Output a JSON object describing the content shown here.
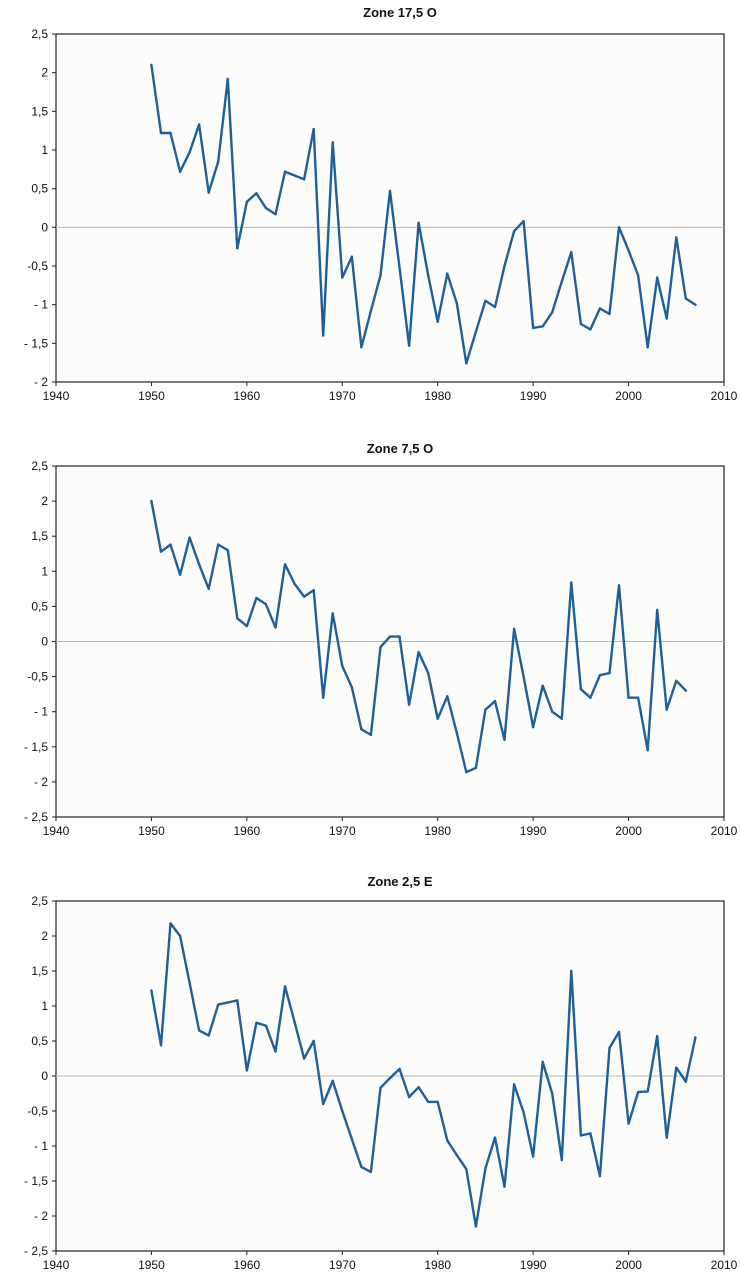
{
  "chart_data": [
    {
      "type": "line",
      "title": "Zone 17,5 O",
      "xlim": [
        1940,
        2010
      ],
      "ylim": [
        -2,
        2.5
      ],
      "x_ticks": [
        1940,
        1950,
        1960,
        1970,
        1980,
        1990,
        2000,
        2010
      ],
      "x_tick_labels": [
        "1940",
        "1950",
        "1960",
        "1970",
        "1980",
        "1990",
        "2000",
        "2010"
      ],
      "y_ticks": [
        2.5,
        2,
        1.5,
        1,
        0.5,
        0,
        -0.5,
        -1,
        -1.5,
        -2
      ],
      "y_tick_labels": [
        "2,5",
        "2",
        "1,5",
        "1",
        "0,5",
        "0",
        "-0,5",
        "- 1",
        "- 1,5",
        "- 2"
      ],
      "grid": false,
      "zero_line": true,
      "color": "#1f5f9a",
      "x": [
        1950,
        1951,
        1952,
        1953,
        1954,
        1955,
        1956,
        1957,
        1958,
        1959,
        1960,
        1961,
        1962,
        1963,
        1964,
        1965,
        1966,
        1967,
        1968,
        1969,
        1970,
        1971,
        1972,
        1973,
        1974,
        1975,
        1976,
        1977,
        1978,
        1979,
        1980,
        1981,
        1982,
        1983,
        1984,
        1985,
        1986,
        1987,
        1988,
        1989,
        1990,
        1991,
        1992,
        1993,
        1994,
        1995,
        1996,
        1997,
        1998,
        1999,
        2000,
        2001,
        2002,
        2003,
        2004,
        2005,
        2006,
        2007
      ],
      "values": [
        2.1,
        1.22,
        1.22,
        0.72,
        0.97,
        1.33,
        0.45,
        0.85,
        1.92,
        -0.27,
        0.33,
        0.44,
        0.25,
        0.17,
        0.72,
        0.67,
        0.62,
        1.27,
        -1.4,
        1.1,
        -0.65,
        -0.38,
        -1.55,
        -1.08,
        -0.62,
        0.47,
        -0.52,
        -1.53,
        0.06,
        -0.62,
        -1.22,
        -0.6,
        -0.98,
        -1.76,
        -1.35,
        -0.95,
        -1.03,
        -0.5,
        -0.05,
        0.08,
        -1.3,
        -1.28,
        -1.1,
        -0.7,
        -0.32,
        -1.25,
        -1.32,
        -1.05,
        -1.12,
        0.0,
        -0.3,
        -0.62,
        -1.55,
        -0.65,
        -1.18,
        -0.13,
        -0.92,
        -1.0
      ]
    },
    {
      "type": "line",
      "title": "Zone 7,5 O",
      "xlim": [
        1940,
        2010
      ],
      "ylim": [
        -2.5,
        2.5
      ],
      "x_ticks": [
        1940,
        1950,
        1960,
        1970,
        1980,
        1990,
        2000,
        2010
      ],
      "x_tick_labels": [
        "1940",
        "1950",
        "1960",
        "1970",
        "1980",
        "1990",
        "2000",
        "2010"
      ],
      "y_ticks": [
        2.5,
        2,
        1.5,
        1,
        0.5,
        0,
        -0.5,
        -1,
        -1.5,
        -2,
        -2.5
      ],
      "y_tick_labels": [
        "2,5",
        "2",
        "1,5",
        "1",
        "0,5",
        "0",
        "-0,5",
        "- 1",
        "- 1,5",
        "- 2",
        "- 2,5"
      ],
      "grid": false,
      "zero_line": true,
      "color": "#1f5f9a",
      "x": [
        1950,
        1951,
        1952,
        1953,
        1954,
        1955,
        1956,
        1957,
        1958,
        1959,
        1960,
        1961,
        1962,
        1963,
        1964,
        1965,
        1966,
        1967,
        1968,
        1969,
        1970,
        1971,
        1972,
        1973,
        1974,
        1975,
        1976,
        1977,
        1978,
        1979,
        1980,
        1981,
        1982,
        1983,
        1984,
        1985,
        1986,
        1987,
        1988,
        1989,
        1990,
        1991,
        1992,
        1993,
        1994,
        1995,
        1996,
        1997,
        1998,
        1999,
        2000,
        2001,
        2002,
        2003,
        2004,
        2005,
        2006
      ],
      "values": [
        2.0,
        1.28,
        1.38,
        0.95,
        1.48,
        1.1,
        0.75,
        1.38,
        1.3,
        0.33,
        0.22,
        0.62,
        0.53,
        0.2,
        1.1,
        0.82,
        0.64,
        0.73,
        -0.8,
        0.4,
        -0.35,
        -0.65,
        -1.25,
        -1.33,
        -0.08,
        0.07,
        0.07,
        -0.9,
        -0.15,
        -0.45,
        -1.1,
        -0.78,
        -1.3,
        -1.86,
        -1.8,
        -0.97,
        -0.85,
        -1.4,
        0.18,
        -0.5,
        -1.22,
        -0.63,
        -1.0,
        -1.1,
        0.84,
        -0.68,
        -0.8,
        -0.48,
        -0.45,
        0.8,
        -0.8,
        -0.8,
        -1.55,
        0.45,
        -0.97,
        -0.56,
        -0.7
      ]
    },
    {
      "type": "line",
      "title": "Zone 2,5 E",
      "xlim": [
        1940,
        2010
      ],
      "ylim": [
        -2.5,
        2.5
      ],
      "x_ticks": [
        1940,
        1950,
        1960,
        1970,
        1980,
        1990,
        2000,
        2010
      ],
      "x_tick_labels": [
        "1940",
        "1950",
        "1960",
        "1970",
        "1980",
        "1990",
        "2000",
        "2010"
      ],
      "y_ticks": [
        2.5,
        2,
        1.5,
        1,
        0.5,
        0,
        -0.5,
        -1,
        -1.5,
        -2,
        -2.5
      ],
      "y_tick_labels": [
        "2,5",
        "2",
        "1,5",
        "1",
        "0,5",
        "0",
        "-0,5",
        "- 1",
        "- 1,5",
        "- 2",
        "- 2,5"
      ],
      "grid": false,
      "zero_line": true,
      "color": "#1f5f9a",
      "x": [
        1950,
        1951,
        1952,
        1953,
        1954,
        1955,
        1956,
        1957,
        1958,
        1959,
        1960,
        1961,
        1962,
        1963,
        1964,
        1965,
        1966,
        1967,
        1968,
        1969,
        1970,
        1971,
        1972,
        1973,
        1974,
        1975,
        1976,
        1977,
        1978,
        1979,
        1980,
        1981,
        1982,
        1983,
        1984,
        1985,
        1986,
        1987,
        1988,
        1989,
        1990,
        1991,
        1992,
        1993,
        1994,
        1995,
        1996,
        1997,
        1998,
        1999,
        2000,
        2001,
        2002,
        2003,
        2004,
        2005,
        2006,
        2007
      ],
      "values": [
        1.22,
        0.44,
        2.18,
        2.0,
        1.33,
        0.65,
        0.58,
        1.02,
        1.05,
        1.08,
        0.08,
        0.76,
        0.72,
        0.35,
        1.28,
        0.77,
        0.25,
        0.5,
        -0.4,
        -0.07,
        -0.5,
        -0.9,
        -1.3,
        -1.37,
        -0.17,
        -0.03,
        0.1,
        -0.3,
        -0.16,
        -0.37,
        -0.37,
        -0.92,
        -1.13,
        -1.33,
        -2.15,
        -1.32,
        -0.88,
        -1.58,
        -0.12,
        -0.52,
        -1.15,
        0.2,
        -0.25,
        -1.2,
        1.5,
        -0.85,
        -0.82,
        -1.43,
        0.4,
        0.63,
        -0.68,
        -0.23,
        -0.22,
        0.57,
        -0.88,
        0.12,
        -0.08,
        0.55
      ]
    }
  ]
}
